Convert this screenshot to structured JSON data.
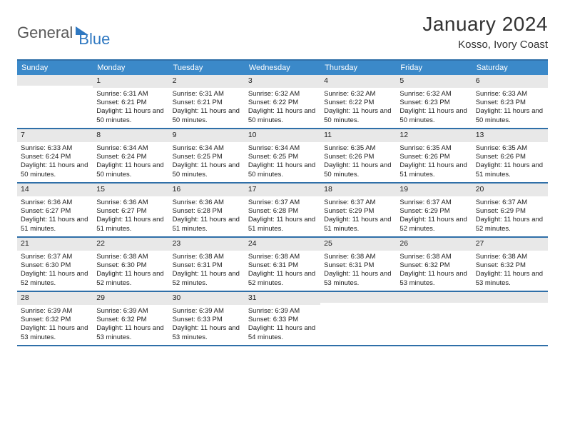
{
  "logo": {
    "part1": "General",
    "part2": "Blue"
  },
  "title": "January 2024",
  "subtitle": "Kosso, Ivory Coast",
  "colors": {
    "header_bg": "#3b89c9",
    "header_text": "#ffffff",
    "border": "#2f6fa8",
    "daynum_bg": "#e8e8e8",
    "text": "#222222",
    "logo_gray": "#5a5a5a",
    "logo_blue": "#2f78c1"
  },
  "days_of_week": [
    "Sunday",
    "Monday",
    "Tuesday",
    "Wednesday",
    "Thursday",
    "Friday",
    "Saturday"
  ],
  "weeks": [
    [
      {
        "n": "",
        "sr": "",
        "ss": "",
        "dl": "",
        "empty": true
      },
      {
        "n": "1",
        "sr": "Sunrise: 6:31 AM",
        "ss": "Sunset: 6:21 PM",
        "dl": "Daylight: 11 hours and 50 minutes."
      },
      {
        "n": "2",
        "sr": "Sunrise: 6:31 AM",
        "ss": "Sunset: 6:21 PM",
        "dl": "Daylight: 11 hours and 50 minutes."
      },
      {
        "n": "3",
        "sr": "Sunrise: 6:32 AM",
        "ss": "Sunset: 6:22 PM",
        "dl": "Daylight: 11 hours and 50 minutes."
      },
      {
        "n": "4",
        "sr": "Sunrise: 6:32 AM",
        "ss": "Sunset: 6:22 PM",
        "dl": "Daylight: 11 hours and 50 minutes."
      },
      {
        "n": "5",
        "sr": "Sunrise: 6:32 AM",
        "ss": "Sunset: 6:23 PM",
        "dl": "Daylight: 11 hours and 50 minutes."
      },
      {
        "n": "6",
        "sr": "Sunrise: 6:33 AM",
        "ss": "Sunset: 6:23 PM",
        "dl": "Daylight: 11 hours and 50 minutes."
      }
    ],
    [
      {
        "n": "7",
        "sr": "Sunrise: 6:33 AM",
        "ss": "Sunset: 6:24 PM",
        "dl": "Daylight: 11 hours and 50 minutes."
      },
      {
        "n": "8",
        "sr": "Sunrise: 6:34 AM",
        "ss": "Sunset: 6:24 PM",
        "dl": "Daylight: 11 hours and 50 minutes."
      },
      {
        "n": "9",
        "sr": "Sunrise: 6:34 AM",
        "ss": "Sunset: 6:25 PM",
        "dl": "Daylight: 11 hours and 50 minutes."
      },
      {
        "n": "10",
        "sr": "Sunrise: 6:34 AM",
        "ss": "Sunset: 6:25 PM",
        "dl": "Daylight: 11 hours and 50 minutes."
      },
      {
        "n": "11",
        "sr": "Sunrise: 6:35 AM",
        "ss": "Sunset: 6:26 PM",
        "dl": "Daylight: 11 hours and 50 minutes."
      },
      {
        "n": "12",
        "sr": "Sunrise: 6:35 AM",
        "ss": "Sunset: 6:26 PM",
        "dl": "Daylight: 11 hours and 51 minutes."
      },
      {
        "n": "13",
        "sr": "Sunrise: 6:35 AM",
        "ss": "Sunset: 6:26 PM",
        "dl": "Daylight: 11 hours and 51 minutes."
      }
    ],
    [
      {
        "n": "14",
        "sr": "Sunrise: 6:36 AM",
        "ss": "Sunset: 6:27 PM",
        "dl": "Daylight: 11 hours and 51 minutes."
      },
      {
        "n": "15",
        "sr": "Sunrise: 6:36 AM",
        "ss": "Sunset: 6:27 PM",
        "dl": "Daylight: 11 hours and 51 minutes."
      },
      {
        "n": "16",
        "sr": "Sunrise: 6:36 AM",
        "ss": "Sunset: 6:28 PM",
        "dl": "Daylight: 11 hours and 51 minutes."
      },
      {
        "n": "17",
        "sr": "Sunrise: 6:37 AM",
        "ss": "Sunset: 6:28 PM",
        "dl": "Daylight: 11 hours and 51 minutes."
      },
      {
        "n": "18",
        "sr": "Sunrise: 6:37 AM",
        "ss": "Sunset: 6:29 PM",
        "dl": "Daylight: 11 hours and 51 minutes."
      },
      {
        "n": "19",
        "sr": "Sunrise: 6:37 AM",
        "ss": "Sunset: 6:29 PM",
        "dl": "Daylight: 11 hours and 52 minutes."
      },
      {
        "n": "20",
        "sr": "Sunrise: 6:37 AM",
        "ss": "Sunset: 6:29 PM",
        "dl": "Daylight: 11 hours and 52 minutes."
      }
    ],
    [
      {
        "n": "21",
        "sr": "Sunrise: 6:37 AM",
        "ss": "Sunset: 6:30 PM",
        "dl": "Daylight: 11 hours and 52 minutes."
      },
      {
        "n": "22",
        "sr": "Sunrise: 6:38 AM",
        "ss": "Sunset: 6:30 PM",
        "dl": "Daylight: 11 hours and 52 minutes."
      },
      {
        "n": "23",
        "sr": "Sunrise: 6:38 AM",
        "ss": "Sunset: 6:31 PM",
        "dl": "Daylight: 11 hours and 52 minutes."
      },
      {
        "n": "24",
        "sr": "Sunrise: 6:38 AM",
        "ss": "Sunset: 6:31 PM",
        "dl": "Daylight: 11 hours and 52 minutes."
      },
      {
        "n": "25",
        "sr": "Sunrise: 6:38 AM",
        "ss": "Sunset: 6:31 PM",
        "dl": "Daylight: 11 hours and 53 minutes."
      },
      {
        "n": "26",
        "sr": "Sunrise: 6:38 AM",
        "ss": "Sunset: 6:32 PM",
        "dl": "Daylight: 11 hours and 53 minutes."
      },
      {
        "n": "27",
        "sr": "Sunrise: 6:38 AM",
        "ss": "Sunset: 6:32 PM",
        "dl": "Daylight: 11 hours and 53 minutes."
      }
    ],
    [
      {
        "n": "28",
        "sr": "Sunrise: 6:39 AM",
        "ss": "Sunset: 6:32 PM",
        "dl": "Daylight: 11 hours and 53 minutes."
      },
      {
        "n": "29",
        "sr": "Sunrise: 6:39 AM",
        "ss": "Sunset: 6:32 PM",
        "dl": "Daylight: 11 hours and 53 minutes."
      },
      {
        "n": "30",
        "sr": "Sunrise: 6:39 AM",
        "ss": "Sunset: 6:33 PM",
        "dl": "Daylight: 11 hours and 53 minutes."
      },
      {
        "n": "31",
        "sr": "Sunrise: 6:39 AM",
        "ss": "Sunset: 6:33 PM",
        "dl": "Daylight: 11 hours and 54 minutes."
      },
      {
        "n": "",
        "sr": "",
        "ss": "",
        "dl": "",
        "empty": true
      },
      {
        "n": "",
        "sr": "",
        "ss": "",
        "dl": "",
        "empty": true
      },
      {
        "n": "",
        "sr": "",
        "ss": "",
        "dl": "",
        "empty": true
      }
    ]
  ]
}
